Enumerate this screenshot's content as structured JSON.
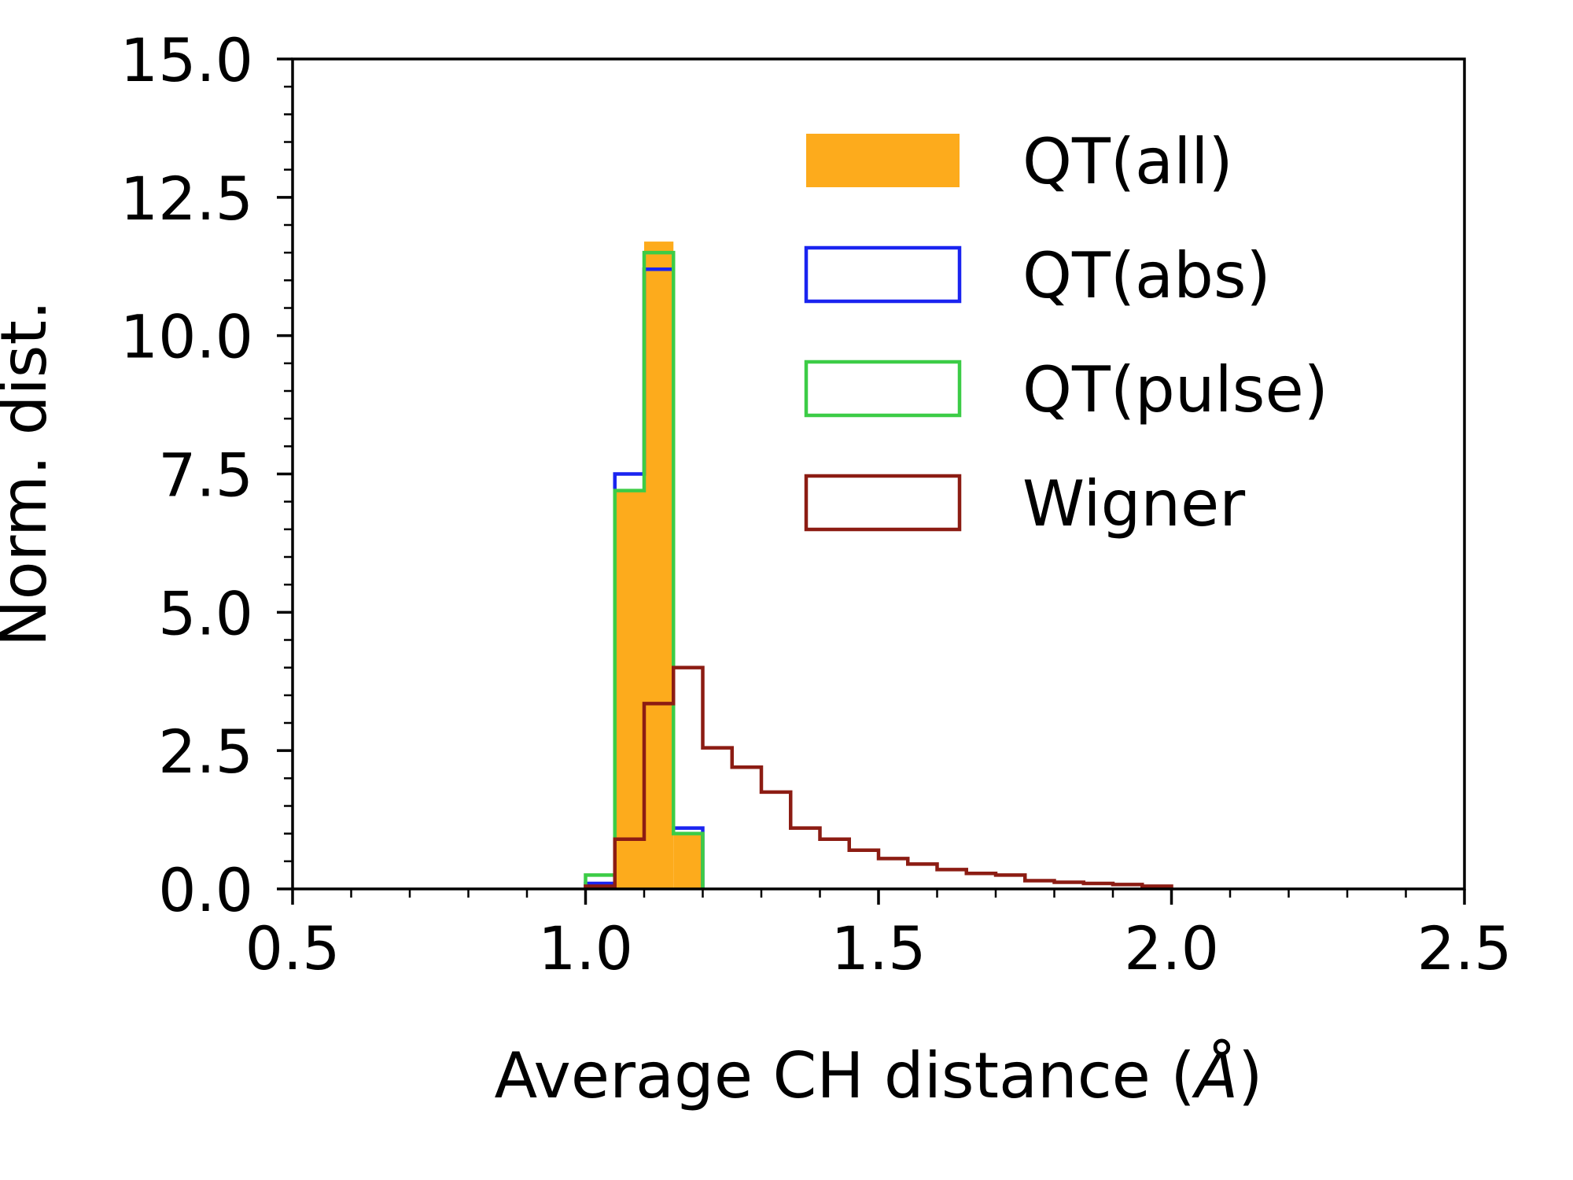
{
  "chart_data": {
    "type": "bar",
    "xlabel": "Average CH distance (",
    "xlabel_unit": "Å",
    "xlabel_close": ")",
    "ylabel": "Norm. dist.",
    "xlim": [
      0.5,
      2.5
    ],
    "ylim": [
      0,
      15
    ],
    "xticks": [
      "0.5",
      "1.0",
      "1.5",
      "2.0",
      "2.5"
    ],
    "yticks": [
      "0.0",
      "2.5",
      "5.0",
      "7.5",
      "10.0",
      "12.5",
      "15.0"
    ],
    "grid": false,
    "legend_position": "top-right",
    "bin_width": 0.05,
    "series": [
      {
        "name": "QT(all)",
        "style": "filled",
        "color": "#fdab1c",
        "bin_start": [
          1.0,
          1.05,
          1.1,
          1.15
        ],
        "values": [
          0.1,
          7.2,
          11.7,
          1.0
        ]
      },
      {
        "name": "QT(abs)",
        "style": "step",
        "color": "#1a24f0",
        "bin_start": [
          1.0,
          1.05,
          1.1,
          1.15
        ],
        "values": [
          0.1,
          7.5,
          11.2,
          1.1
        ]
      },
      {
        "name": "QT(pulse)",
        "style": "step",
        "color": "#3ccc46",
        "bin_start": [
          1.0,
          1.05,
          1.1,
          1.15
        ],
        "values": [
          0.25,
          7.2,
          11.5,
          1.0
        ]
      },
      {
        "name": "Wigner",
        "style": "step",
        "color": "#8c1c13",
        "bin_start": [
          1.0,
          1.05,
          1.1,
          1.15,
          1.2,
          1.25,
          1.3,
          1.35,
          1.4,
          1.45,
          1.5,
          1.55,
          1.6,
          1.65,
          1.7,
          1.75,
          1.8,
          1.85,
          1.9,
          1.95
        ],
        "values": [
          0.05,
          0.9,
          3.35,
          4.0,
          2.55,
          2.2,
          1.75,
          1.1,
          0.9,
          0.7,
          0.55,
          0.45,
          0.35,
          0.28,
          0.25,
          0.15,
          0.12,
          0.1,
          0.08,
          0.05
        ]
      }
    ]
  }
}
